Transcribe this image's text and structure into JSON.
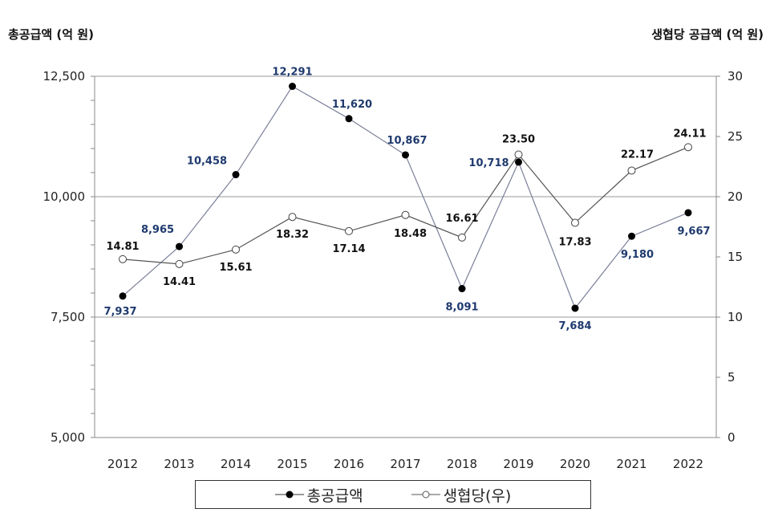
{
  "chart_data": {
    "type": "line",
    "y_left_title": "총공급액 (억 원)",
    "y_right_title": "생협당 공급액 (억 원)",
    "categories": [
      "2012",
      "2013",
      "2014",
      "2015",
      "2016",
      "2017",
      "2018",
      "2019",
      "2020",
      "2021",
      "2022"
    ],
    "y_left": {
      "range": [
        5000,
        12500
      ],
      "ticks": [
        "5,000",
        "7,500",
        "10,000",
        "12,500"
      ]
    },
    "y_right": {
      "range": [
        0,
        30
      ],
      "ticks": [
        "0",
        "5",
        "10",
        "15",
        "20",
        "25",
        "30"
      ]
    },
    "grid": "horizontal major",
    "legend": "bottom",
    "series": [
      {
        "name": "총공급액",
        "axis": "left",
        "marker": "filled-circle",
        "label_color": "#1f3a6e",
        "values": [
          7937,
          8965,
          10458,
          12291,
          11620,
          10867,
          8091,
          10718,
          7684,
          9180,
          9667
        ],
        "labels": [
          "7,937",
          "8,965",
          "10,458",
          "12,291",
          "11,620",
          "10,867",
          "8,091",
          "10,718",
          "7,684",
          "9,180",
          "9,667"
        ]
      },
      {
        "name": "생협당(우)",
        "axis": "right",
        "marker": "open-circle",
        "label_color": "#111111",
        "values": [
          14.81,
          14.41,
          15.61,
          18.32,
          17.14,
          18.48,
          16.61,
          23.5,
          17.83,
          22.17,
          24.11
        ],
        "labels": [
          "14.81",
          "14.41",
          "15.61",
          "18.32",
          "17.14",
          "18.48",
          "16.61",
          "23.50",
          "17.83",
          "22.17",
          "24.11"
        ]
      }
    ]
  }
}
